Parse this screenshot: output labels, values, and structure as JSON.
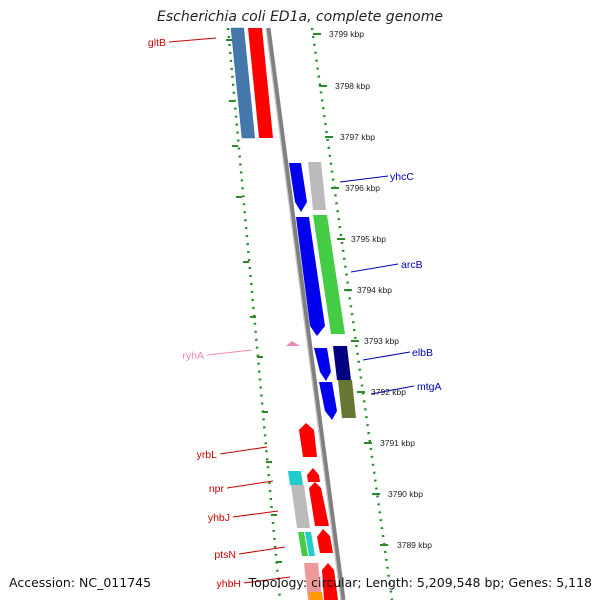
{
  "title": "Escherichia coli ED1a, complete genome",
  "accession": "Accession: NC_011745",
  "topology": "Topology: circular; Length: 5,209,548 bp; Genes: 5,118",
  "colors": {
    "backbone": "#808080",
    "ticks": "#2a8a2a",
    "label_red": "#cc0000",
    "label_blue": "#0000bb",
    "label_pink": "#ee88bb"
  },
  "kbp_labels": [
    "3799 kbp",
    "3798 kbp",
    "3797 kbp",
    "3796 kbp",
    "3795 kbp",
    "3794 kbp",
    "3793 kbp",
    "3792 kbp",
    "3791 kbp",
    "3790 kbp",
    "3789 kbp"
  ],
  "genes": [
    {
      "name": "gltB",
      "strand": "minus"
    },
    {
      "name": "yhcC",
      "strand": "plus"
    },
    {
      "name": "arcB",
      "strand": "plus"
    },
    {
      "name": "elbB",
      "strand": "plus"
    },
    {
      "name": "mtgA",
      "strand": "plus"
    },
    {
      "name": "ryhA",
      "strand": "minus",
      "type": "RNA"
    },
    {
      "name": "yrbL",
      "strand": "minus"
    },
    {
      "name": "npr",
      "strand": "minus"
    },
    {
      "name": "yhbJ",
      "strand": "minus"
    },
    {
      "name": "ptsN",
      "strand": "minus"
    },
    {
      "name": "yhbH",
      "strand": "minus"
    }
  ]
}
